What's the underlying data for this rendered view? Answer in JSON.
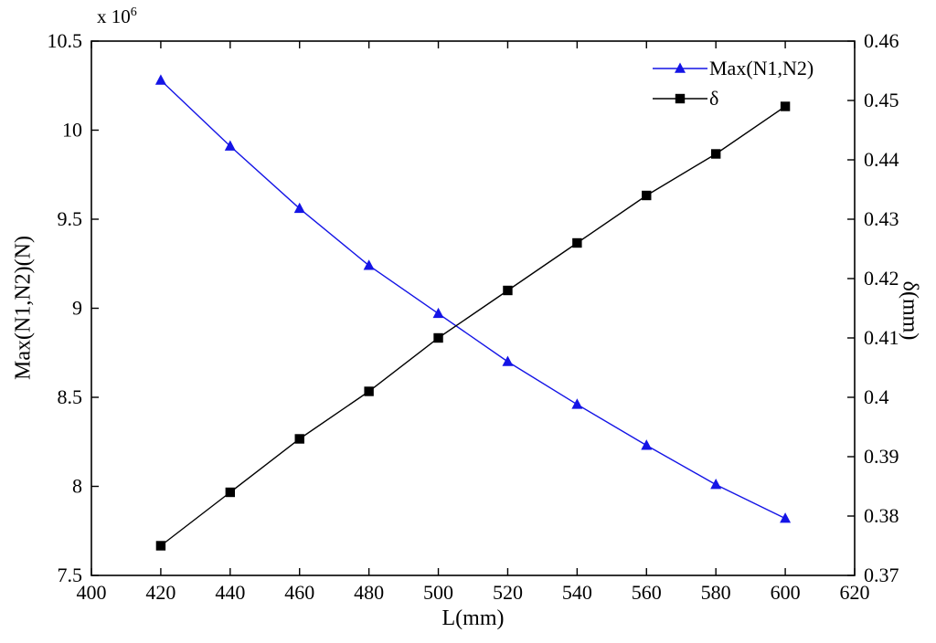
{
  "chart_data": {
    "type": "line",
    "title": "",
    "xlabel": "L(mm)",
    "xlim": [
      400,
      620
    ],
    "x_ticks": [
      400,
      420,
      440,
      460,
      480,
      500,
      520,
      540,
      560,
      580,
      600,
      620
    ],
    "x_tick_labels": [
      "400",
      "420",
      "440",
      "460",
      "480",
      "500",
      "520",
      "540",
      "560",
      "580",
      "600",
      "620"
    ],
    "left_axis": {
      "label": "Max(N1,N2)(N)",
      "multiplier_base": "x 10",
      "multiplier_exp": "6",
      "lim": [
        7.5,
        10.5
      ],
      "tick_values": [
        7.5,
        8,
        8.5,
        9,
        9.5,
        10,
        10.5
      ],
      "tick_labels": [
        "7.5",
        "8",
        "8.5",
        "9",
        "9.5",
        "10",
        "10.5"
      ]
    },
    "right_axis": {
      "label": "δ(mm)",
      "lim": [
        0.37,
        0.46
      ],
      "tick_values": [
        0.37,
        0.38,
        0.39,
        0.4,
        0.41,
        0.42,
        0.43,
        0.44,
        0.45,
        0.46
      ],
      "tick_labels": [
        "0.37",
        "0.38",
        "0.39",
        "0.4",
        "0.41",
        "0.42",
        "0.43",
        "0.44",
        "0.45",
        "0.46"
      ]
    },
    "x": [
      420,
      440,
      460,
      480,
      500,
      520,
      540,
      560,
      580,
      600
    ],
    "series": [
      {
        "name": "Max(N1,N2)",
        "axis": "left",
        "unit": "x10^6 N",
        "color": "#1414e6",
        "marker": "triangle",
        "values": [
          10.28,
          9.91,
          9.56,
          9.24,
          8.97,
          8.7,
          8.46,
          8.23,
          8.01,
          7.82
        ]
      },
      {
        "name": "δ",
        "axis": "right",
        "unit": "mm",
        "color": "#000000",
        "marker": "square",
        "values": [
          0.375,
          0.384,
          0.393,
          0.401,
          0.41,
          0.418,
          0.426,
          0.434,
          0.441,
          0.449
        ]
      }
    ],
    "legend": {
      "position": "top-right",
      "entries": [
        "Max(N1,N2)",
        "δ"
      ]
    },
    "grid": false,
    "background": "#ffffff",
    "axis_color": "#000000"
  }
}
